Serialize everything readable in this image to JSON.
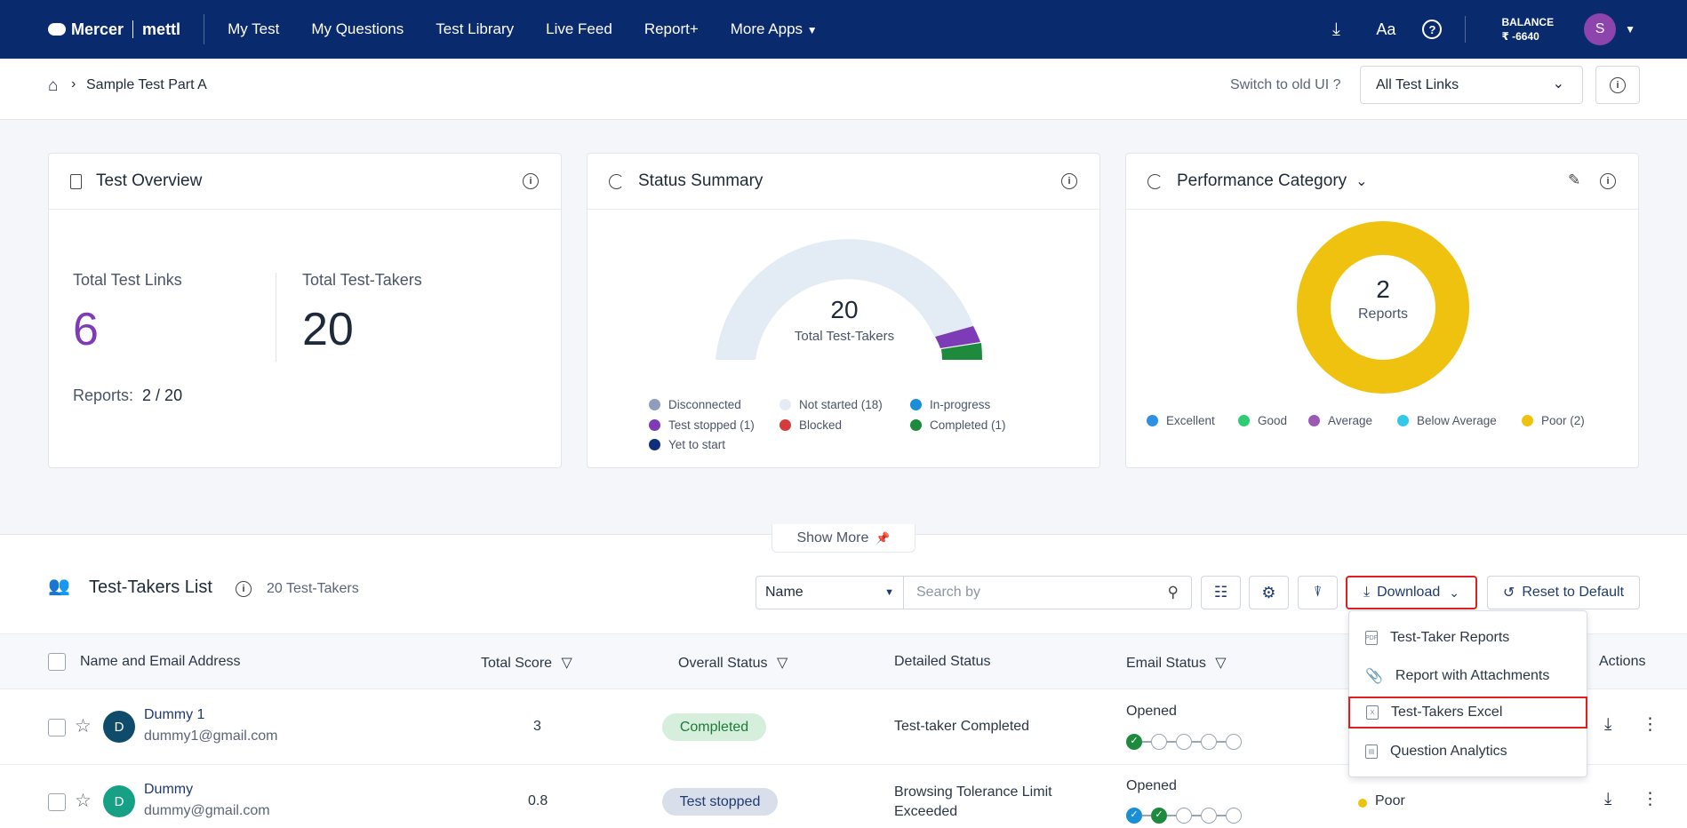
{
  "topbar": {
    "brand": "Mercer",
    "brand2": "mettl",
    "nav": [
      "My Test",
      "My Questions",
      "Test Library",
      "Live Feed",
      "Report+",
      "More Apps"
    ],
    "balance_label": "BALANCE",
    "balance_value": "₹ -6640",
    "avatar_initial": "S"
  },
  "breadcrumb": {
    "current": "Sample Test Part A"
  },
  "header_right": {
    "switch_label": "Switch to old UI ?",
    "select_value": "All Test Links"
  },
  "overview": {
    "title": "Test Overview",
    "links_label": "Total Test Links",
    "links_value": "6",
    "takers_label": "Total Test-Takers",
    "takers_value": "20",
    "reports_label": "Reports:",
    "reports_value": "2 / 20"
  },
  "status_summary": {
    "title": "Status Summary",
    "center_value": "20",
    "center_label": "Total Test-Takers",
    "legend": [
      {
        "label": "Disconnected",
        "color": "#8e9dbb"
      },
      {
        "label": "Not started (18)",
        "color": "#e3ebf4"
      },
      {
        "label": "In-progress",
        "color": "#1a8fd6"
      },
      {
        "label": "Test stopped (1)",
        "color": "#7d3cb5"
      },
      {
        "label": "Blocked",
        "color": "#d63b3b"
      },
      {
        "label": "Completed (1)",
        "color": "#1e8a3e"
      },
      {
        "label": "Yet to start",
        "color": "#0f2f7a"
      }
    ]
  },
  "performance": {
    "title": "Performance Category",
    "center_value": "2",
    "center_label": "Reports",
    "legend": [
      {
        "label": "Excellent",
        "color": "#2f8fe0"
      },
      {
        "label": "Good",
        "color": "#2ecc71"
      },
      {
        "label": "Average",
        "color": "#9b59b6"
      },
      {
        "label": "Below Average",
        "color": "#35c7e8"
      },
      {
        "label": "Poor (2)",
        "color": "#efc20f"
      }
    ]
  },
  "show_more": "Show More",
  "list": {
    "title": "Test-Takers List",
    "count": "20 Test-Takers",
    "filter_value": "Name",
    "search_placeholder": "Search by",
    "download_label": "Download",
    "reset_label": "Reset to Default",
    "columns": [
      "Name and Email Address",
      "Total Score",
      "Overall Status",
      "Detailed Status",
      "Email Status",
      "Actions"
    ],
    "rows": [
      {
        "initial": "D",
        "name": "Dummy 1",
        "email": "dummy1@gmail.com",
        "score": "3",
        "status": "Completed",
        "detail": "Test-taker Completed",
        "email_status": "Opened"
      },
      {
        "initial": "D",
        "name": "Dummy",
        "email": "dummy@gmail.com",
        "score": "0.8",
        "status": "Test stopped",
        "detail": "Browsing Tolerance Limit Exceeded",
        "email_status": "Opened",
        "perf": "Poor"
      }
    ]
  },
  "download_menu": [
    "Test-Taker Reports",
    "Report with Attachments",
    "Test-Takers Excel",
    "Question Analytics"
  ]
}
